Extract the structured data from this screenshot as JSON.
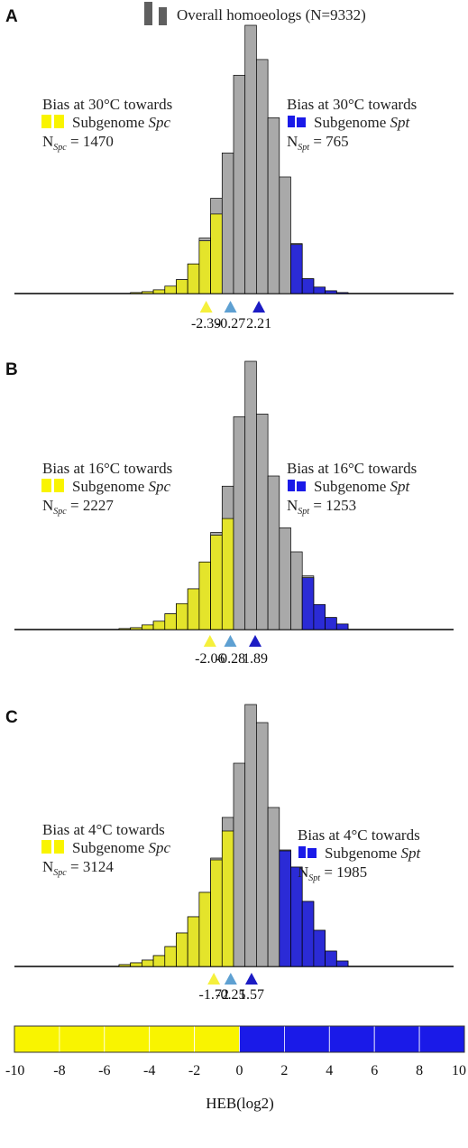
{
  "legend": {
    "overall_label": "Overall homoeologs (N=9332)"
  },
  "colors": {
    "gray": "#a9a9a9",
    "yellow": "#e4e42b",
    "blue": "#2b2bd6",
    "yellow_marker": "#f5f03c",
    "blue_marker": "#1c1cc4",
    "center_marker": "#5ea0d2",
    "legend_gray": "#5f5f5f",
    "legend_yellow": "#f9f400",
    "legend_blue": "#1a1ae8"
  },
  "chart_data": [
    {
      "type": "bar",
      "panel": "A",
      "left_text": {
        "line1": "Bias at 30°C towards",
        "line2": "Subgenome ",
        "line2_italic": "Spc",
        "n_prefix": "N",
        "n_sub": "Spc",
        "n_value": " = 1470"
      },
      "right_text": {
        "line1": "Bias at 30°C towards",
        "line2": "Subgenome ",
        "line2_italic": "Spt",
        "n_prefix": "N",
        "n_sub": "Spt",
        "n_value": " = 765"
      },
      "bars": [
        {
          "x": -9.5,
          "gray": 0,
          "color": 0
        },
        {
          "x": -8.5,
          "gray": 1,
          "color": 1
        },
        {
          "x": -7.5,
          "gray": 2,
          "color": 2
        },
        {
          "x": -6.5,
          "gray": 4,
          "color": 4
        },
        {
          "x": -5.5,
          "gray": 8,
          "color": 8
        },
        {
          "x": -4.5,
          "gray": 15,
          "color": 15
        },
        {
          "x": -3.5,
          "gray": 32,
          "color": 32
        },
        {
          "x": -2.5,
          "gray": 60,
          "color": 57
        },
        {
          "x": -1.5,
          "gray": 103,
          "color": 86
        },
        {
          "x": -0.5,
          "gray": 152,
          "color": 0
        },
        {
          "x": 0.5,
          "gray": 236,
          "color": 0
        },
        {
          "x": 1.5,
          "gray": 290,
          "color": 0
        },
        {
          "x": 2.5,
          "gray": 253,
          "color": 0
        },
        {
          "x": 3.5,
          "gray": 190,
          "color": 0
        },
        {
          "x": 4.5,
          "gray": 126,
          "color": 0
        },
        {
          "x": 5.5,
          "gray": 54,
          "color": 53
        },
        {
          "x": 6.5,
          "gray": 16,
          "color": 16
        },
        {
          "x": 7.5,
          "gray": 7,
          "color": 7
        },
        {
          "x": 8.5,
          "gray": 3,
          "color": 3
        },
        {
          "x": 9.5,
          "gray": 1,
          "color": 1
        }
      ],
      "markers": [
        {
          "x": -2.39,
          "label": "-2.39",
          "color": "yellow_marker"
        },
        {
          "x": -0.27,
          "label": "-0.27",
          "color": "center_marker"
        },
        {
          "x": 2.21,
          "label": "2.21",
          "color": "blue_marker"
        }
      ]
    },
    {
      "type": "bar",
      "panel": "B",
      "left_text": {
        "line1": "Bias at 16°C towards",
        "line2": "Subgenome ",
        "line2_italic": "Spc",
        "n_prefix": "N",
        "n_sub": "Spc",
        "n_value": " = 2227"
      },
      "right_text": {
        "line1": "Bias at 16°C towards",
        "line2": "Subgenome ",
        "line2_italic": "Spt",
        "n_prefix": "N",
        "n_sub": "Spt",
        "n_value": " = 1253"
      },
      "bars": [
        {
          "x": -9.5,
          "gray": 1,
          "color": 1
        },
        {
          "x": -8.5,
          "gray": 2,
          "color": 2
        },
        {
          "x": -7.5,
          "gray": 5,
          "color": 5
        },
        {
          "x": -6.5,
          "gray": 9,
          "color": 9
        },
        {
          "x": -5.5,
          "gray": 17,
          "color": 17
        },
        {
          "x": -4.5,
          "gray": 28,
          "color": 28
        },
        {
          "x": -3.5,
          "gray": 44,
          "color": 44
        },
        {
          "x": -2.5,
          "gray": 73,
          "color": 73
        },
        {
          "x": -1.5,
          "gray": 105,
          "color": 102
        },
        {
          "x": -0.5,
          "gray": 155,
          "color": 120
        },
        {
          "x": 0.5,
          "gray": 230,
          "color": 0
        },
        {
          "x": 1.5,
          "gray": 290,
          "color": 0
        },
        {
          "x": 2.5,
          "gray": 233,
          "color": 0
        },
        {
          "x": 3.5,
          "gray": 166,
          "color": 0
        },
        {
          "x": 4.5,
          "gray": 110,
          "color": 0
        },
        {
          "x": 5.5,
          "gray": 84,
          "color": 0
        },
        {
          "x": 6.5,
          "gray": 58,
          "color": 56
        },
        {
          "x": 7.5,
          "gray": 27,
          "color": 27
        },
        {
          "x": 8.5,
          "gray": 13,
          "color": 13
        },
        {
          "x": 9.5,
          "gray": 6,
          "color": 6
        }
      ],
      "markers": [
        {
          "x": -2.06,
          "label": "-2.06",
          "color": "yellow_marker"
        },
        {
          "x": -0.28,
          "label": "-0.28",
          "color": "center_marker"
        },
        {
          "x": 1.89,
          "label": "1.89",
          "color": "blue_marker"
        }
      ]
    },
    {
      "type": "bar",
      "panel": "C",
      "left_text": {
        "line1": "Bias at 4°C towards",
        "line2": "Subgenome ",
        "line2_italic": "Spc",
        "n_prefix": "N",
        "n_sub": "Spc",
        "n_value": " = 3124"
      },
      "right_text": {
        "line1": "Bias at 4°C towards",
        "line2": "Subgenome ",
        "line2_italic": "Spt",
        "n_prefix": "N",
        "n_sub": "Spt",
        "n_value": " = 1985"
      },
      "bars": [
        {
          "x": -9.5,
          "gray": 2,
          "color": 2
        },
        {
          "x": -8.5,
          "gray": 4,
          "color": 4
        },
        {
          "x": -7.5,
          "gray": 7,
          "color": 7
        },
        {
          "x": -6.5,
          "gray": 12,
          "color": 12
        },
        {
          "x": -5.5,
          "gray": 22,
          "color": 22
        },
        {
          "x": -4.5,
          "gray": 37,
          "color": 37
        },
        {
          "x": -3.5,
          "gray": 55,
          "color": 55
        },
        {
          "x": -2.5,
          "gray": 82,
          "color": 82
        },
        {
          "x": -1.5,
          "gray": 120,
          "color": 118
        },
        {
          "x": -0.5,
          "gray": 165,
          "color": 150
        },
        {
          "x": 0.5,
          "gray": 225,
          "color": 0
        },
        {
          "x": 1.5,
          "gray": 290,
          "color": 0
        },
        {
          "x": 2.5,
          "gray": 270,
          "color": 0
        },
        {
          "x": 3.5,
          "gray": 176,
          "color": 0
        },
        {
          "x": 4.5,
          "gray": 129,
          "color": 128
        },
        {
          "x": 5.5,
          "gray": 110,
          "color": 110
        },
        {
          "x": 6.5,
          "gray": 72,
          "color": 72
        },
        {
          "x": 7.5,
          "gray": 40,
          "color": 40
        },
        {
          "x": 8.5,
          "gray": 17,
          "color": 17
        },
        {
          "x": 9.5,
          "gray": 6,
          "color": 6
        }
      ],
      "markers": [
        {
          "x": -1.72,
          "label": "-1.72",
          "color": "yellow_marker"
        },
        {
          "x": -0.25,
          "label": "-0.25",
          "color": "center_marker"
        },
        {
          "x": 1.57,
          "label": "1.57",
          "color": "blue_marker"
        }
      ]
    }
  ],
  "colorbar": {
    "ticks": [
      "-10",
      "-8",
      "-6",
      "-4",
      "-2",
      "0",
      "2",
      "4",
      "6",
      "8",
      "10"
    ],
    "xlabel": "HEB(log2)"
  }
}
